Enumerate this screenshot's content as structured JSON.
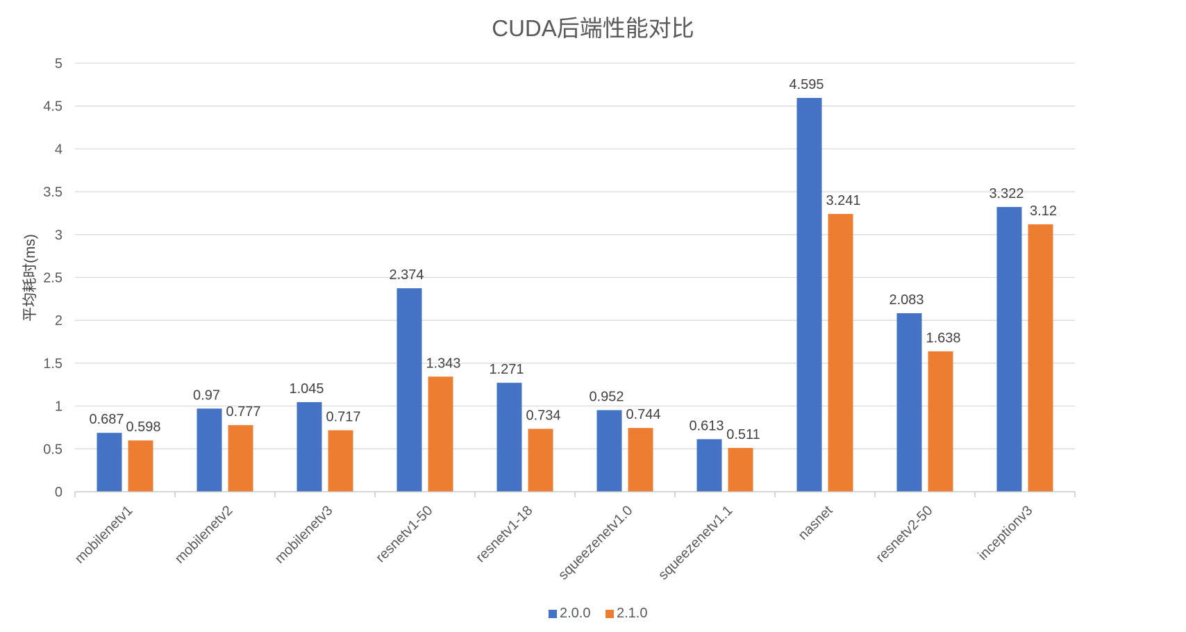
{
  "chart_data": {
    "type": "bar",
    "title": "CUDA后端性能对比",
    "xlabel": "",
    "ylabel": "平均耗时(ms)",
    "ylim": [
      0,
      5
    ],
    "yticks": [
      "0",
      "0.5",
      "1",
      "1.5",
      "2",
      "2.5",
      "3",
      "3.5",
      "4",
      "4.5",
      "5"
    ],
    "grid": true,
    "legend_position": "bottom",
    "categories": [
      "mobilenetv1",
      "mobilenetv2",
      "mobilenetv3",
      "resnetv1-50",
      "resnetv1-18",
      "squeezenetv1.0",
      "squeezenetv1.1",
      "nasnet",
      "resnetv2-50",
      "inceptionv3"
    ],
    "series": [
      {
        "name": "2.0.0",
        "color": "#4472c4",
        "values": [
          0.687,
          0.97,
          1.045,
          2.374,
          1.271,
          0.952,
          0.613,
          4.595,
          2.083,
          3.322
        ],
        "labels": [
          "0.687",
          "0.97",
          "1.045",
          "2.374",
          "1.271",
          "0.952",
          "0.613",
          "4.595",
          "2.083",
          "3.322"
        ]
      },
      {
        "name": "2.1.0",
        "color": "#ed7d31",
        "values": [
          0.598,
          0.777,
          0.717,
          1.343,
          0.734,
          0.744,
          0.511,
          3.241,
          1.638,
          3.12
        ],
        "labels": [
          "0.598",
          "0.777",
          "0.717",
          "1.343",
          "0.734",
          "0.744",
          "0.511",
          "3.241",
          "1.638",
          "3.12"
        ]
      }
    ]
  }
}
